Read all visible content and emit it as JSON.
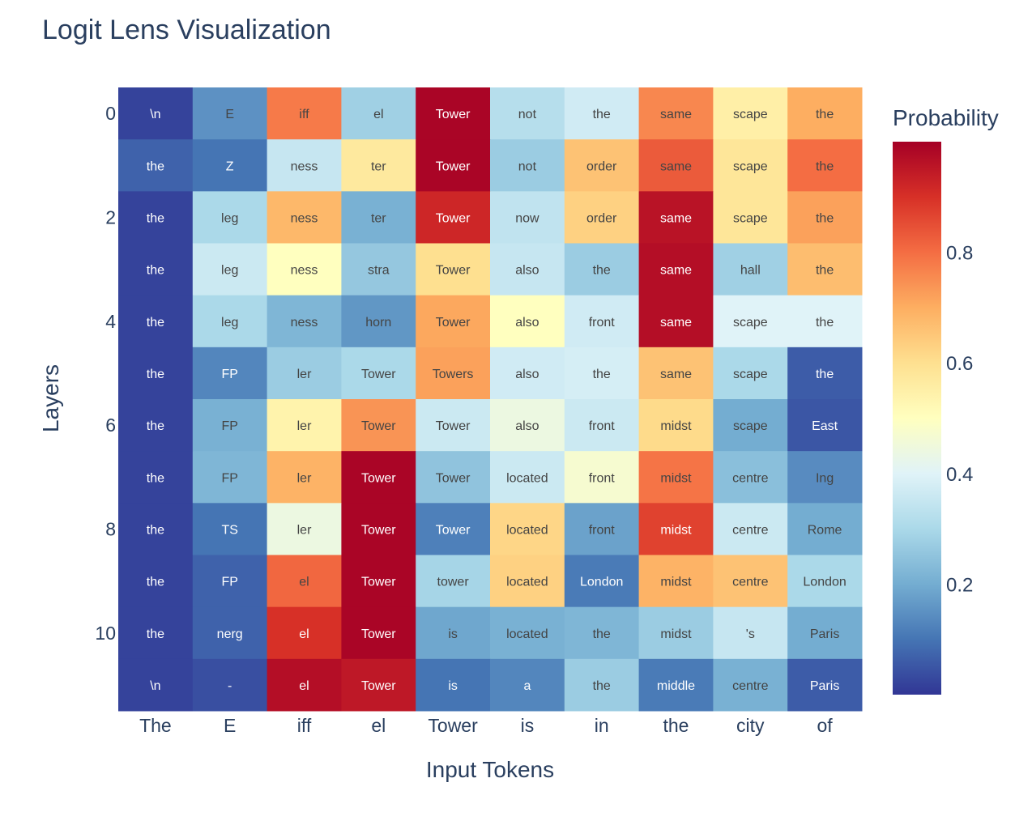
{
  "chart_data": {
    "type": "heatmap",
    "title": "Logit Lens Visualization",
    "xlabel": "Input Tokens",
    "ylabel": "Layers",
    "x_categories": [
      "The",
      "E",
      "iff",
      "el",
      "Tower",
      "is",
      "in",
      "the",
      "city",
      "of"
    ],
    "y_categories": [
      0,
      1,
      2,
      3,
      4,
      5,
      6,
      7,
      8,
      9,
      10,
      11
    ],
    "y_tick_labels": [
      "0",
      "",
      "2",
      "",
      "4",
      "",
      "6",
      "",
      "8",
      "",
      "10",
      ""
    ],
    "colorbar": {
      "title": "Probability",
      "range": [
        0.0,
        1.0
      ],
      "ticks": [
        0.2,
        0.4,
        0.6,
        0.8
      ],
      "tick_labels": [
        "0.2",
        "0.4",
        "0.6",
        "0.8"
      ],
      "colorscale": "RdYlBu_r"
    },
    "cell_text": [
      [
        "\\n",
        "E",
        "iff",
        "el",
        "Tower",
        "not",
        "the",
        "same",
        "scape",
        "the"
      ],
      [
        "the",
        "Z",
        "ness",
        "ter",
        "Tower",
        "not",
        "order",
        "same",
        "scape",
        "the"
      ],
      [
        "the",
        "leg",
        "ness",
        "ter",
        "Tower",
        "now",
        "order",
        "same",
        "scape",
        "the"
      ],
      [
        "the",
        "leg",
        "ness",
        "stra",
        "Tower",
        "also",
        "the",
        "same",
        "hall",
        "the"
      ],
      [
        "the",
        "leg",
        "ness",
        "horn",
        "Tower",
        "also",
        "front",
        "same",
        "scape",
        "the"
      ],
      [
        "the",
        "FP",
        "ler",
        "Tower",
        "Towers",
        "also",
        "the",
        "same",
        "scape",
        "the"
      ],
      [
        "the",
        "FP",
        "ler",
        "Tower",
        "Tower",
        "also",
        "front",
        "midst",
        "scape",
        "East"
      ],
      [
        "the",
        "FP",
        "ler",
        "Tower",
        "Tower",
        "located",
        "front",
        "midst",
        "centre",
        "Ing"
      ],
      [
        "the",
        "TS",
        "ler",
        "Tower",
        "Tower",
        "located",
        "front",
        "midst",
        "centre",
        "Rome"
      ],
      [
        "the",
        "FP",
        "el",
        "Tower",
        "tower",
        "located",
        "London",
        "midst",
        "centre",
        "London"
      ],
      [
        "the",
        "nerg",
        "el",
        "Tower",
        "is",
        "located",
        "the",
        "midst",
        "'s",
        "Paris"
      ],
      [
        "\\n",
        "-",
        "el",
        "Tower",
        "is",
        "a",
        "the",
        "middle",
        "centre",
        "Paris"
      ]
    ],
    "values": [
      [
        0.02,
        0.15,
        0.78,
        0.28,
        0.99,
        0.32,
        0.37,
        0.76,
        0.55,
        0.7
      ],
      [
        0.07,
        0.1,
        0.35,
        0.57,
        0.99,
        0.27,
        0.66,
        0.83,
        0.58,
        0.8
      ],
      [
        0.02,
        0.3,
        0.68,
        0.21,
        0.92,
        0.34,
        0.63,
        0.96,
        0.58,
        0.72
      ],
      [
        0.02,
        0.36,
        0.5,
        0.26,
        0.6,
        0.35,
        0.27,
        0.97,
        0.28,
        0.67
      ],
      [
        0.02,
        0.3,
        0.22,
        0.16,
        0.71,
        0.5,
        0.37,
        0.97,
        0.4,
        0.4
      ],
      [
        0.02,
        0.13,
        0.27,
        0.3,
        0.72,
        0.37,
        0.38,
        0.66,
        0.3,
        0.06
      ],
      [
        0.02,
        0.21,
        0.54,
        0.74,
        0.36,
        0.44,
        0.36,
        0.61,
        0.2,
        0.05
      ],
      [
        0.02,
        0.22,
        0.69,
        0.99,
        0.25,
        0.36,
        0.47,
        0.79,
        0.24,
        0.14
      ],
      [
        0.02,
        0.1,
        0.44,
        0.99,
        0.12,
        0.62,
        0.18,
        0.87,
        0.36,
        0.2
      ],
      [
        0.02,
        0.07,
        0.81,
        0.99,
        0.29,
        0.63,
        0.11,
        0.69,
        0.66,
        0.3
      ],
      [
        0.02,
        0.07,
        0.9,
        0.99,
        0.19,
        0.21,
        0.22,
        0.27,
        0.35,
        0.2
      ],
      [
        0.02,
        0.04,
        0.97,
        0.95,
        0.1,
        0.13,
        0.27,
        0.11,
        0.21,
        0.06
      ]
    ]
  }
}
